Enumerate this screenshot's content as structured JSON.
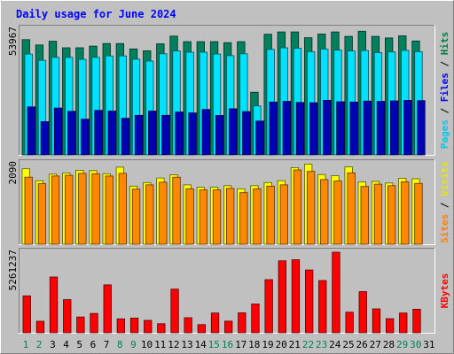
{
  "chart_data": {
    "type": "bar",
    "title": "Daily usage for June 2024",
    "categories": [
      "1",
      "2",
      "3",
      "4",
      "5",
      "6",
      "7",
      "8",
      "9",
      "10",
      "11",
      "12",
      "13",
      "14",
      "15",
      "16",
      "17",
      "18",
      "19",
      "20",
      "21",
      "22",
      "23",
      "24",
      "25",
      "26",
      "27",
      "28",
      "29",
      "30",
      "31"
    ],
    "weekend_days": [
      1,
      2,
      8,
      9,
      15,
      16,
      22,
      23,
      29,
      30
    ],
    "panels": [
      {
        "id": "hits-files-pages",
        "max_label": "53967",
        "ymax": 53967,
        "side_label": [
          {
            "text": "Pages",
            "color": "#00c8e6"
          },
          {
            "text": " / ",
            "color": "#000000"
          },
          {
            "text": "Files",
            "color": "#0000ff"
          },
          {
            "text": " / ",
            "color": "#000000"
          },
          {
            "text": "Hits",
            "color": "#008040"
          }
        ],
        "series": [
          {
            "name": "Hits",
            "color": "#00805c",
            "values": [
              49500,
              47200,
              48800,
              46000,
              46000,
              46700,
              47800,
              47800,
              45500,
              44700,
              47700,
              51000,
              48600,
              48600,
              48600,
              48200,
              48600,
              26900,
              51800,
              52800,
              52800,
              50300,
              51900,
              52800,
              50900,
              53100,
              50900,
              50200,
              51100,
              48900,
              null
            ]
          },
          {
            "name": "Files",
            "color": "#00e0ff",
            "values": [
              43300,
              40600,
              41900,
              41900,
              41000,
              41900,
              42500,
              42500,
              41100,
              40300,
              43400,
              44600,
              44100,
              44100,
              43300,
              42600,
              43400,
              21000,
              45300,
              46000,
              45800,
              44300,
              45400,
              45000,
              44600,
              44800,
              43900,
              44200,
              44900,
              44300,
              null
            ]
          },
          {
            "name": "Pages",
            "color": "#0000b4",
            "values": [
              20600,
              14300,
              20100,
              18700,
              15300,
              19100,
              18800,
              15700,
              17000,
              18800,
              17000,
              18400,
              18000,
              19500,
              16900,
              19800,
              18600,
              14500,
              22700,
              23000,
              22500,
              22400,
              23400,
              22800,
              22700,
              23100,
              23000,
              23200,
              23400,
              23300,
              null
            ]
          }
        ]
      },
      {
        "id": "visits-sites",
        "max_label": "2090",
        "ymax": 2090,
        "side_label": [
          {
            "text": "Sites",
            "color": "#ff8000"
          },
          {
            "text": " / ",
            "color": "#000000"
          },
          {
            "text": "Visits",
            "color": "#e6e600"
          }
        ],
        "series": [
          {
            "name": "Visits",
            "color": "#ffff00",
            "values": [
              1960,
              1650,
              1820,
              1850,
              1920,
              1910,
              1830,
              2000,
              1510,
              1600,
              1720,
              1800,
              1540,
              1480,
              1480,
              1520,
              1440,
              1520,
              1600,
              1650,
              1990,
              2080,
              1810,
              1780,
              2010,
              1620,
              1630,
              1590,
              1710,
              1700,
              null
            ]
          },
          {
            "name": "Sites",
            "color": "#ff8800",
            "values": [
              1740,
              1570,
              1770,
              1790,
              1840,
              1830,
              1770,
              1840,
              1430,
              1540,
              1610,
              1740,
              1440,
              1410,
              1410,
              1450,
              1340,
              1440,
              1510,
              1540,
              1930,
              1890,
              1680,
              1640,
              1850,
              1500,
              1560,
              1520,
              1620,
              1580,
              null
            ]
          }
        ]
      },
      {
        "id": "kbytes",
        "max_label": "5261237",
        "ymax": 5261237,
        "side_label": [
          {
            "text": "KBytes",
            "color": "#ff0000"
          }
        ],
        "series": [
          {
            "name": "KBytes",
            "color": "#ff0000",
            "values": [
              2410000,
              750000,
              3640000,
              2160000,
              1030000,
              1260000,
              3130000,
              910000,
              960000,
              810000,
              590000,
              2850000,
              980000,
              530000,
              1290000,
              760000,
              1300000,
              1880000,
              3470000,
              4700000,
              4770000,
              4100000,
              3410000,
              5261237,
              1340000,
              2690000,
              1560000,
              920000,
              1290000,
              1540000,
              null
            ]
          }
        ]
      }
    ]
  }
}
